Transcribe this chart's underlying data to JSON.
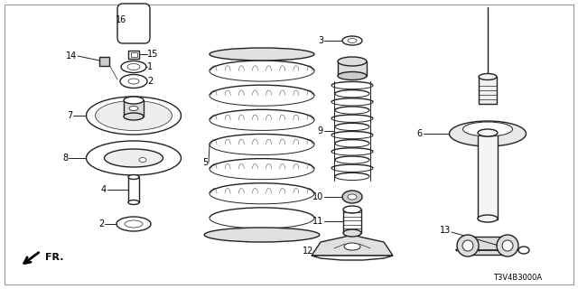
{
  "background_color": "#ffffff",
  "line_color": "#222222",
  "label_color": "#000000",
  "diagram_code": "T3V4B3000A",
  "fr_label": "FR.",
  "figsize": [
    6.4,
    3.2
  ],
  "dpi": 100
}
